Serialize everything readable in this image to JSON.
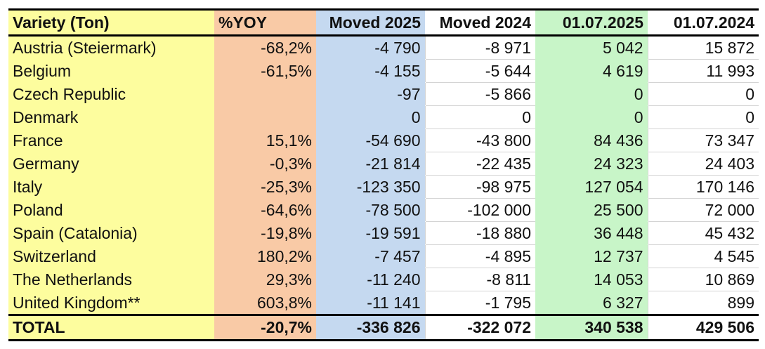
{
  "table": {
    "headers": [
      "Variety (Ton)",
      "%YOY",
      "Moved 2025",
      "Moved 2024",
      "01.07.2025",
      "01.07.2024"
    ],
    "rows": [
      [
        "Austria (Steiermark)",
        "-68,2%",
        "-4 790",
        "-8 971",
        "5 042",
        "15 872"
      ],
      [
        "Belgium",
        "-61,5%",
        "-4 155",
        "-5 644",
        "4 619",
        "11 993"
      ],
      [
        "Czech Republic",
        "",
        "-97",
        "-5 866",
        "0",
        "0"
      ],
      [
        "Denmark",
        "",
        "0",
        "0",
        "0",
        "0"
      ],
      [
        "France",
        "15,1%",
        "-54 690",
        "-43 800",
        "84 436",
        "73 347"
      ],
      [
        "Germany",
        "-0,3%",
        "-21 814",
        "-22 435",
        "24 323",
        "24 403"
      ],
      [
        "Italy",
        "-25,3%",
        "-123 350",
        "-98 975",
        "127 054",
        "170 146"
      ],
      [
        "Poland",
        "-64,6%",
        "-78 500",
        "-102 000",
        "25 500",
        "72 000"
      ],
      [
        "Spain (Catalonia)",
        "-19,8%",
        "-19 591",
        "-18 880",
        "36 448",
        "45 432"
      ],
      [
        "Switzerland",
        "180,2%",
        "-7 457",
        "-4 895",
        "12 737",
        "4 545"
      ],
      [
        "The Netherlands",
        "29,3%",
        "-11 240",
        "-8 811",
        "14 053",
        "10 869"
      ],
      [
        "United Kingdom**",
        "603,8%",
        "-11 141",
        "-1 795",
        "6 327",
        "899"
      ]
    ],
    "total": [
      "TOTAL",
      "-20,7%",
      "-336 826",
      "-322 072",
      "340 538",
      "429 506"
    ]
  },
  "colors": {
    "variety": "#fdfd9e",
    "yoy": "#f9caa6",
    "moved2025": "#c5d9f0",
    "stock2025": "#c8f5c8"
  }
}
